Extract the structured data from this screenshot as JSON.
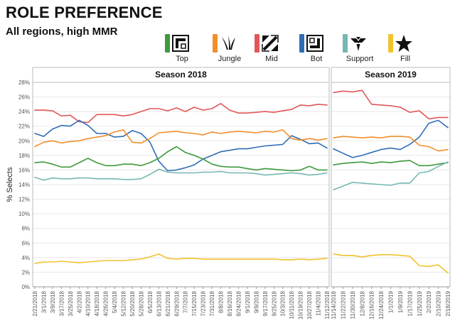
{
  "page": {
    "title": "ROLE PREFERENCE",
    "subtitle": "All regions, high MMR"
  },
  "legend": [
    {
      "name": "Top",
      "color": "#3e9a3c",
      "icon": "top-lane-icon"
    },
    {
      "name": "Jungle",
      "color": "#f28e2b",
      "icon": "jungle-claw-icon"
    },
    {
      "name": "Mid",
      "color": "#e15759",
      "icon": "mid-lane-icon"
    },
    {
      "name": "Bot",
      "color": "#2f6db5",
      "icon": "bot-lane-icon"
    },
    {
      "name": "Support",
      "color": "#76b7b2",
      "icon": "support-crest-icon"
    },
    {
      "name": "Fill",
      "color": "#f2c22e",
      "icon": "fill-star-icon"
    }
  ],
  "chart_data": {
    "type": "line",
    "title": "ROLE PREFERENCE",
    "subtitle": "All regions, high MMR",
    "ylabel": "% Selects",
    "xlabel": "",
    "ylim": [
      0,
      28
    ],
    "yticks": [
      "0%",
      "2%",
      "4%",
      "6%",
      "8%",
      "10%",
      "12%",
      "14%",
      "16%",
      "18%",
      "20%",
      "22%",
      "24%",
      "26%",
      "28%"
    ],
    "grid": true,
    "panels": [
      {
        "name": "Season 2018",
        "x": [
          "2/21/2018",
          "3/1/2018",
          "3/9/2018",
          "3/17/2018",
          "3/25/2018",
          "4/2/2018",
          "4/10/2018",
          "4/18/2018",
          "4/26/2018",
          "5/4/2018",
          "5/12/2018",
          "5/20/2018",
          "5/28/2018",
          "6/5/2018",
          "6/13/2018",
          "6/21/2018",
          "6/29/2018",
          "7/7/2018",
          "7/15/2018",
          "7/23/2018",
          "7/31/2018",
          "8/8/2018",
          "8/16/2018",
          "8/24/2018",
          "9/1/2018",
          "9/9/2018",
          "9/17/2018",
          "9/25/2018",
          "10/3/2018",
          "10/11/2018",
          "10/19/2018",
          "10/27/2018",
          "11/4/2018",
          "11/12/2018"
        ],
        "series": [
          {
            "name": "Mid",
            "values": [
              24.2,
              24.2,
              24.1,
              23.4,
              23.5,
              22.6,
              22.5,
              23.6,
              23.6,
              23.6,
              23.4,
              23.6,
              24.0,
              24.4,
              24.4,
              24.1,
              24.5,
              24.0,
              24.6,
              24.2,
              24.4,
              25.1,
              24.2,
              23.8,
              23.8,
              23.9,
              24.0,
              23.9,
              24.1,
              24.3,
              24.9,
              24.8,
              25.0,
              24.9
            ]
          },
          {
            "name": "Bot",
            "values": [
              21.0,
              20.6,
              21.6,
              22.1,
              22.0,
              22.8,
              22.1,
              21.0,
              21.0,
              20.5,
              20.6,
              21.4,
              21.0,
              19.8,
              17.2,
              15.9,
              16.0,
              16.3,
              16.7,
              17.5,
              18.0,
              18.5,
              18.7,
              18.9,
              18.9,
              19.1,
              19.3,
              19.4,
              19.5,
              20.7,
              20.2,
              19.6,
              19.7,
              19.0
            ]
          },
          {
            "name": "Jungle",
            "values": [
              19.2,
              19.8,
              20.0,
              19.7,
              19.9,
              20.0,
              20.3,
              20.5,
              20.7,
              21.2,
              21.5,
              19.8,
              19.7,
              20.3,
              21.1,
              21.2,
              21.3,
              21.1,
              21.0,
              20.8,
              21.2,
              21.0,
              21.2,
              21.3,
              21.2,
              21.1,
              21.3,
              21.2,
              21.5,
              20.3,
              20.1,
              20.3,
              20.1,
              20.3
            ]
          },
          {
            "name": "Top",
            "values": [
              17.0,
              17.1,
              16.8,
              16.4,
              16.4,
              17.0,
              17.6,
              17.0,
              16.6,
              16.6,
              16.8,
              16.8,
              16.6,
              17.0,
              17.6,
              18.5,
              19.2,
              18.4,
              18.0,
              17.5,
              16.8,
              16.5,
              16.4,
              16.4,
              16.2,
              16.0,
              16.2,
              16.1,
              16.0,
              15.9,
              16.0,
              16.5,
              16.0,
              16.0
            ]
          },
          {
            "name": "Support",
            "values": [
              15.0,
              14.6,
              14.9,
              14.8,
              14.8,
              14.9,
              14.9,
              14.8,
              14.8,
              14.8,
              14.7,
              14.7,
              14.8,
              15.4,
              16.1,
              15.7,
              15.6,
              15.6,
              15.6,
              15.7,
              15.7,
              15.8,
              15.6,
              15.6,
              15.6,
              15.5,
              15.3,
              15.4,
              15.5,
              15.6,
              15.5,
              15.3,
              15.4,
              15.6
            ]
          },
          {
            "name": "Fill",
            "values": [
              3.2,
              3.4,
              3.4,
              3.5,
              3.4,
              3.3,
              3.4,
              3.5,
              3.6,
              3.6,
              3.6,
              3.7,
              3.8,
              4.1,
              4.5,
              3.9,
              3.8,
              3.9,
              3.9,
              3.8,
              3.8,
              3.8,
              3.8,
              3.8,
              3.8,
              3.8,
              3.8,
              3.8,
              3.7,
              3.7,
              3.8,
              3.7,
              3.8,
              3.9
            ]
          }
        ]
      },
      {
        "name": "Season 2019",
        "x": [
          "11/14/2018",
          "11/22/2018",
          "11/30/2018",
          "12/8/2018",
          "12/16/2018",
          "12/24/2018",
          "1/1/2019",
          "1/9/2019",
          "1/17/2019",
          "1/25/2019",
          "2/2/2019",
          "2/10/2019",
          "2/18/2019"
        ],
        "series": [
          {
            "name": "Mid",
            "values": [
              26.6,
              26.8,
              26.7,
              26.9,
              25.0,
              24.9,
              24.8,
              24.6,
              23.9,
              24.1,
              23.0,
              23.2,
              23.2
            ]
          },
          {
            "name": "Bot",
            "values": [
              18.9,
              18.3,
              17.7,
              18.0,
              18.4,
              18.8,
              19.0,
              18.8,
              19.5,
              20.5,
              22.4,
              22.8,
              21.8
            ]
          },
          {
            "name": "Jungle",
            "values": [
              20.4,
              20.6,
              20.5,
              20.4,
              20.5,
              20.4,
              20.6,
              20.6,
              20.5,
              19.4,
              19.2,
              18.6,
              18.8
            ]
          },
          {
            "name": "Top",
            "values": [
              16.7,
              16.9,
              17.0,
              17.1,
              16.9,
              17.1,
              17.0,
              17.2,
              17.3,
              16.6,
              16.6,
              16.8,
              17.0
            ]
          },
          {
            "name": "Support",
            "values": [
              13.3,
              13.8,
              14.3,
              14.2,
              14.1,
              14.0,
              13.9,
              14.2,
              14.2,
              15.6,
              15.8,
              16.5,
              17.1
            ]
          },
          {
            "name": "Fill",
            "values": [
              4.5,
              4.3,
              4.3,
              4.1,
              4.3,
              4.4,
              4.4,
              4.3,
              4.2,
              2.9,
              2.8,
              3.0,
              1.9
            ]
          }
        ]
      }
    ]
  }
}
